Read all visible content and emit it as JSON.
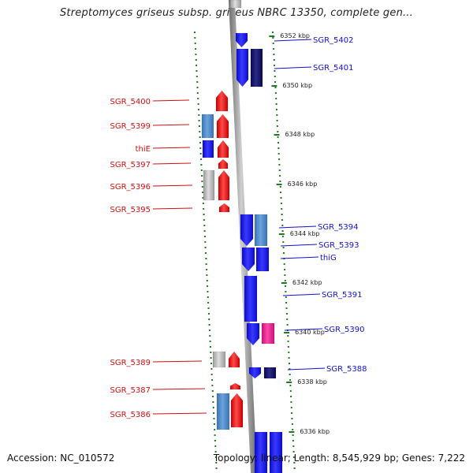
{
  "title": "Streptomyces griseus subsp. griseus NBRC 13350, complete gen...",
  "footer": {
    "accession": "Accession: NC_010572",
    "topology": "Topology: linear; Length: 8,545,929 bp; Genes: 7,222"
  },
  "scale_labels": [
    "6352 kbp",
    "6350 kbp",
    "6348 kbp",
    "6346 kbp",
    "6344 kbp",
    "6342 kbp",
    "6340 kbp",
    "6338 kbp",
    "6336 kbp"
  ],
  "genes_left": [
    "SGR_5400",
    "SGR_5399",
    "thiE",
    "SGR_5397",
    "SGR_5396",
    "SGR_5395",
    "SGR_5389",
    "SGR_5387",
    "SGR_5386"
  ],
  "genes_right": [
    "SGR_5402",
    "SGR_5401",
    "SGR_5394",
    "SGR_5393",
    "thiG",
    "SGR_5391",
    "SGR_5390",
    "SGR_5388"
  ],
  "colors": {
    "reverse_strand": "#e01010",
    "forward_strand": "#1a1ae6",
    "dark_blue": "#10105a",
    "steel_blue": "#4a86c8",
    "grey": "#b4b4b4",
    "magenta": "#e0208a",
    "axis": "#909090",
    "tick": "#1e7a1e",
    "label_red": "#cc1010",
    "label_blue": "#1010cc"
  }
}
